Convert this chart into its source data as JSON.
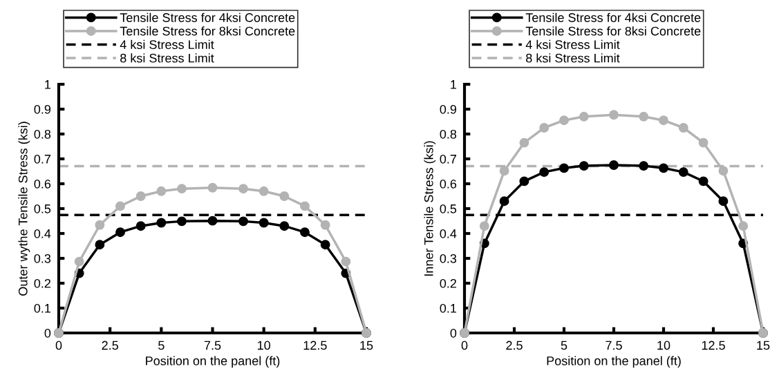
{
  "chart_data": [
    {
      "type": "line",
      "xlabel": "Position on the panel (ft)",
      "ylabel": "Outer wythe Tensile Stress (ksi)",
      "x": [
        0,
        1,
        2,
        3,
        4,
        5,
        6,
        7.5,
        9,
        10,
        11,
        12,
        13,
        14,
        15
      ],
      "series": [
        {
          "name": "Tensile Stress for 4ksi Concrete",
          "color": "#000000",
          "values": [
            0,
            0.24,
            0.355,
            0.405,
            0.43,
            0.443,
            0.449,
            0.451,
            0.449,
            0.443,
            0.43,
            0.405,
            0.355,
            0.24,
            0
          ]
        },
        {
          "name": "Tensile Stress for 8ksi Concrete",
          "color": "#b3b3b3",
          "values": [
            0,
            0.287,
            0.434,
            0.51,
            0.55,
            0.57,
            0.58,
            0.584,
            0.58,
            0.57,
            0.55,
            0.51,
            0.434,
            0.287,
            0
          ]
        }
      ],
      "ref_lines": [
        {
          "axis": "y",
          "value": 0.474,
          "label": "4 ksi Stress Limit",
          "color": "#000000",
          "line_style": "dashed"
        },
        {
          "axis": "y",
          "value": 0.671,
          "label": "8 ksi Stress Limit",
          "color": "#b3b3b3",
          "line_style": "dashed"
        }
      ],
      "marker": "circle",
      "line_style": "solid",
      "legend": "top",
      "grid": false,
      "xlim": [
        0,
        15
      ],
      "xticks": [
        0,
        2.5,
        5,
        7.5,
        10,
        12.5,
        15
      ],
      "ylim": [
        0,
        1
      ],
      "yticks": [
        0,
        0.1,
        0.2,
        0.3,
        0.4,
        0.5,
        0.6,
        0.7,
        0.8,
        0.9,
        1
      ]
    },
    {
      "type": "line",
      "xlabel": "Position on the panel (ft)",
      "ylabel": "Inner Tensile Stress (ksi)",
      "x": [
        0,
        1,
        2,
        3,
        4,
        5,
        6,
        7.5,
        9,
        10,
        11,
        12,
        13,
        14,
        15
      ],
      "series": [
        {
          "name": "Tensile Stress for 4ksi Concrete",
          "color": "#000000",
          "values": [
            0,
            0.36,
            0.53,
            0.61,
            0.647,
            0.663,
            0.672,
            0.675,
            0.672,
            0.663,
            0.647,
            0.61,
            0.53,
            0.36,
            0
          ]
        },
        {
          "name": "Tensile Stress for 8ksi Concrete",
          "color": "#b3b3b3",
          "values": [
            0,
            0.43,
            0.652,
            0.765,
            0.825,
            0.855,
            0.87,
            0.877,
            0.87,
            0.855,
            0.825,
            0.765,
            0.652,
            0.43,
            0
          ]
        }
      ],
      "ref_lines": [
        {
          "axis": "y",
          "value": 0.474,
          "label": "4 ksi Stress Limit",
          "color": "#000000",
          "line_style": "dashed"
        },
        {
          "axis": "y",
          "value": 0.671,
          "label": "8 ksi Stress Limit",
          "color": "#b3b3b3",
          "line_style": "dashed"
        }
      ],
      "marker": "circle",
      "line_style": "solid",
      "legend": "top",
      "grid": false,
      "xlim": [
        0,
        15
      ],
      "xticks": [
        0,
        2.5,
        5,
        7.5,
        10,
        12.5,
        15
      ],
      "ylim": [
        0,
        1
      ],
      "yticks": [
        0,
        0.1,
        0.2,
        0.3,
        0.4,
        0.5,
        0.6,
        0.7,
        0.8,
        0.9,
        1
      ]
    }
  ]
}
